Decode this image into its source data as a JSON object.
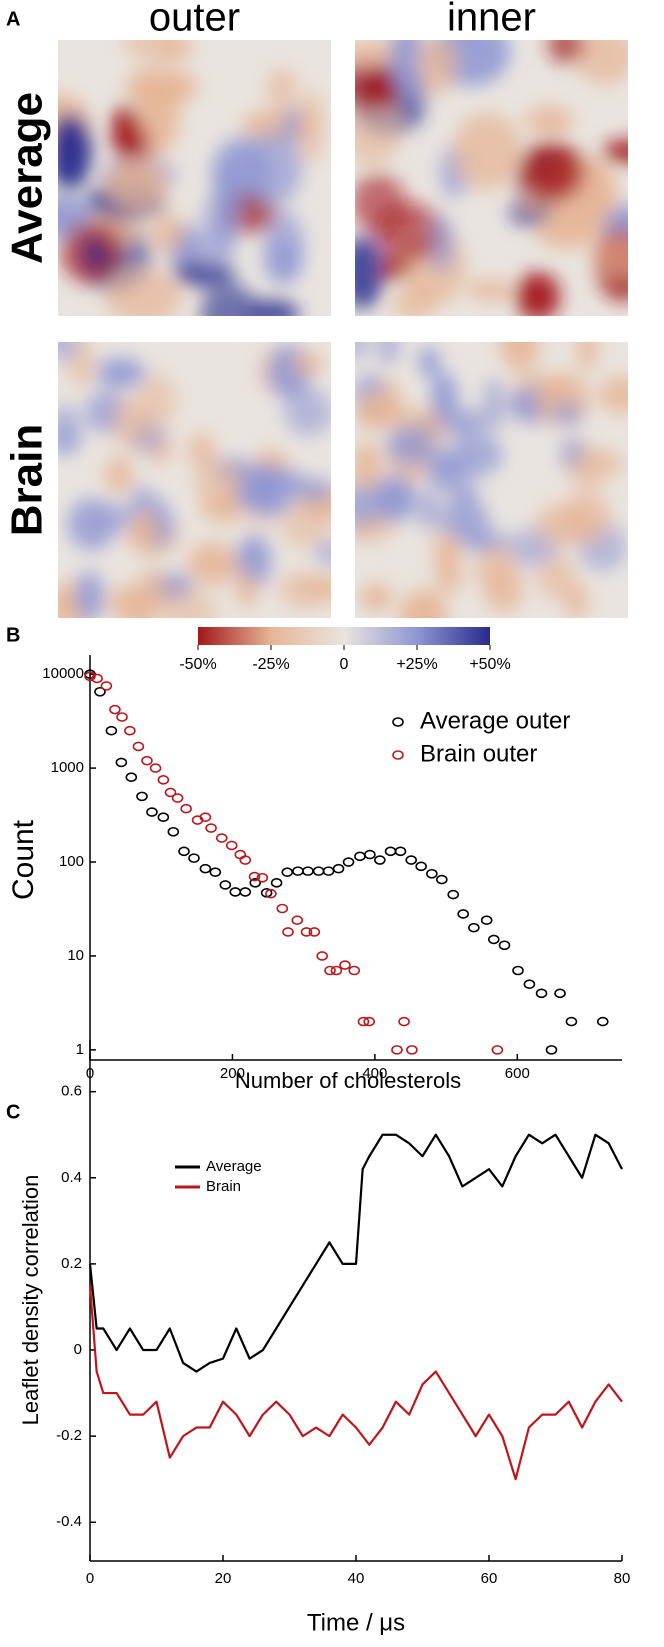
{
  "chart_data": [
    {
      "type": "heatmap",
      "panel": "A",
      "columns": [
        "outer",
        "inner"
      ],
      "rows": [
        "Average",
        "Brain"
      ],
      "clim": [
        -50,
        50
      ],
      "cticks": [
        {
          "value": -50,
          "label": "-50%"
        },
        {
          "value": -25,
          "label": "-25%"
        },
        0,
        {
          "value": 25,
          "label": "+25%"
        },
        {
          "value": 50,
          "label": "+50%"
        }
      ],
      "colormap": [
        "#a3171b",
        "#e6b596",
        "#e9e4df",
        "#8f96d2",
        "#262b8e"
      ]
    },
    {
      "type": "scatter",
      "panel": "B",
      "ylabel": "Count",
      "xlabel": "Number of cholesterols",
      "xlim": [
        0,
        747
      ],
      "xticks": [
        0,
        200,
        400,
        600
      ],
      "ylim": [
        0.78,
        16000
      ],
      "yticks": [
        1,
        10,
        100,
        1000,
        10000
      ],
      "log_y": true,
      "legend": "upper right",
      "series": [
        {
          "name": "Average outer",
          "color": "#000000",
          "x": [
            0,
            14,
            30,
            44,
            58,
            73,
            87,
            103,
            117,
            132,
            146,
            162,
            176,
            190,
            204,
            218,
            232,
            248,
            262,
            277,
            292,
            306,
            321,
            335,
            349,
            363,
            379,
            393,
            407,
            422,
            436,
            451,
            465,
            480,
            494,
            510,
            524,
            539,
            557,
            567,
            582,
            601,
            617,
            634,
            660,
            676,
            720,
            648
          ],
          "values": [
            10000,
            6500,
            2500,
            1150,
            800,
            500,
            340,
            300,
            210,
            130,
            110,
            85,
            78,
            57,
            48,
            48,
            60,
            47,
            60,
            78,
            80,
            80,
            80,
            80,
            85,
            100,
            115,
            120,
            105,
            130,
            130,
            105,
            90,
            75,
            65,
            45,
            28,
            20,
            24,
            15,
            13,
            7,
            5,
            4,
            4,
            2,
            2,
            1
          ]
        },
        {
          "name": "Brain outer",
          "color": "#c0161b",
          "x": [
            0,
            10,
            23,
            35,
            45,
            56,
            68,
            80,
            92,
            103,
            113,
            123,
            135,
            151,
            162,
            170,
            185,
            199,
            211,
            218,
            231,
            242,
            254,
            270,
            278,
            291,
            304,
            315,
            326,
            337,
            346,
            358,
            371,
            384,
            392,
            431,
            441,
            452,
            572
          ],
          "values": [
            9500,
            9000,
            7500,
            4200,
            3500,
            2500,
            1700,
            1200,
            1000,
            750,
            550,
            480,
            370,
            280,
            300,
            230,
            180,
            150,
            120,
            105,
            70,
            68,
            46,
            32,
            18,
            24,
            18,
            18,
            10,
            7,
            7,
            8,
            7,
            2,
            2,
            1,
            2,
            1,
            1
          ]
        }
      ]
    },
    {
      "type": "line",
      "panel": "C",
      "ylabel": "Leaflet density correlation",
      "xlabel": "Time / μs",
      "xlim": [
        0,
        80
      ],
      "xticks": [
        0,
        20,
        40,
        60,
        80
      ],
      "ylim": [
        -0.49,
        0.72
      ],
      "yticks": [
        -0.4,
        -0.2,
        0,
        0.2,
        0.4,
        0.6
      ],
      "legend": "upper left",
      "x": [
        0,
        1,
        2,
        4,
        6,
        8,
        10,
        12,
        14,
        16,
        18,
        20,
        22,
        24,
        26,
        28,
        30,
        32,
        34,
        36,
        38,
        40,
        41,
        42,
        44,
        46,
        48,
        50,
        52,
        54,
        56,
        58,
        60,
        62,
        64,
        66,
        68,
        70,
        72,
        74,
        76,
        78,
        80
      ],
      "series": [
        {
          "name": "Average",
          "color": "#000000",
          "values": [
            0.2,
            0.05,
            0.05,
            0,
            0.05,
            0,
            0,
            0.05,
            -0.03,
            -0.05,
            -0.03,
            -0.02,
            0.05,
            -0.02,
            0,
            0.05,
            0.1,
            0.15,
            0.2,
            0.25,
            0.2,
            0.2,
            0.42,
            0.45,
            0.5,
            0.5,
            0.48,
            0.45,
            0.5,
            0.45,
            0.38,
            0.4,
            0.42,
            0.38,
            0.45,
            0.5,
            0.48,
            0.5,
            0.45,
            0.4,
            0.5,
            0.48,
            0.42
          ]
        },
        {
          "name": "Brain",
          "color": "#c0161b",
          "values": [
            0.15,
            -0.05,
            -0.1,
            -0.1,
            -0.15,
            -0.15,
            -0.12,
            -0.25,
            -0.2,
            -0.18,
            -0.18,
            -0.12,
            -0.15,
            -0.2,
            -0.15,
            -0.12,
            -0.15,
            -0.2,
            -0.18,
            -0.2,
            -0.15,
            -0.18,
            -0.2,
            -0.22,
            -0.18,
            -0.12,
            -0.15,
            -0.08,
            -0.05,
            -0.1,
            -0.15,
            -0.2,
            -0.15,
            -0.2,
            -0.3,
            -0.18,
            -0.15,
            -0.15,
            -0.12,
            -0.18,
            -0.12,
            -0.08,
            -0.12
          ]
        }
      ]
    }
  ]
}
